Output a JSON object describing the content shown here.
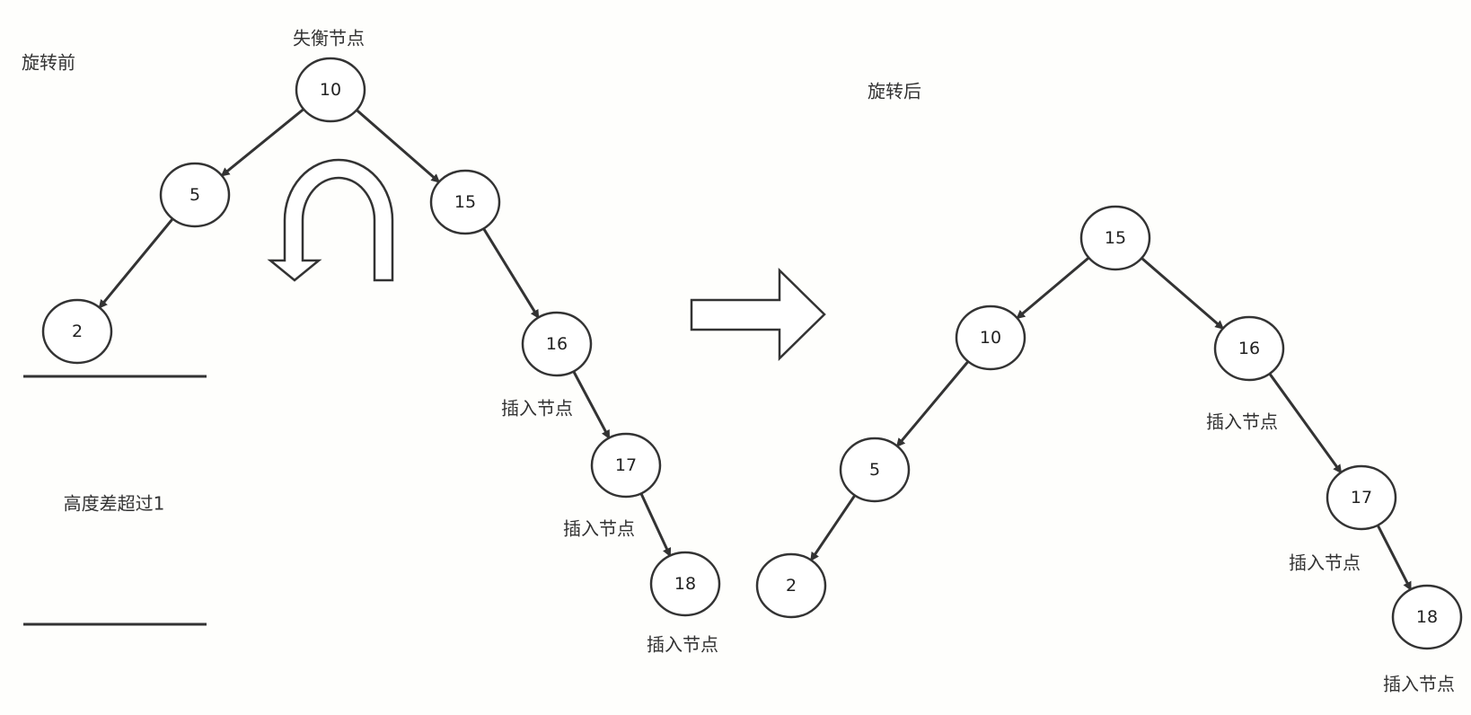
{
  "before": {
    "title": "旋转前",
    "unbalanced_label": "失衡节点",
    "height_label": "高度差超过1",
    "nodes": [
      {
        "id": "n10",
        "value": "10"
      },
      {
        "id": "n5",
        "value": "5"
      },
      {
        "id": "n15",
        "value": "15"
      },
      {
        "id": "n2",
        "value": "2"
      },
      {
        "id": "n16",
        "value": "16"
      },
      {
        "id": "n17",
        "value": "17"
      },
      {
        "id": "n18",
        "value": "18"
      }
    ],
    "edges": [
      [
        "n10",
        "n5"
      ],
      [
        "n10",
        "n15"
      ],
      [
        "n5",
        "n2"
      ],
      [
        "n15",
        "n16"
      ],
      [
        "n16",
        "n17"
      ],
      [
        "n17",
        "n18"
      ]
    ],
    "insert_labels": [
      "插入节点",
      "插入节点",
      "插入节点"
    ]
  },
  "after": {
    "title": "旋转后",
    "nodes": [
      {
        "id": "m15",
        "value": "15"
      },
      {
        "id": "m10",
        "value": "10"
      },
      {
        "id": "m16",
        "value": "16"
      },
      {
        "id": "m5",
        "value": "5"
      },
      {
        "id": "m17",
        "value": "17"
      },
      {
        "id": "m2",
        "value": "2"
      },
      {
        "id": "m18",
        "value": "18"
      }
    ],
    "edges": [
      [
        "m15",
        "m10"
      ],
      [
        "m15",
        "m16"
      ],
      [
        "m10",
        "m5"
      ],
      [
        "m5",
        "m2"
      ],
      [
        "m16",
        "m17"
      ],
      [
        "m17",
        "m18"
      ]
    ],
    "insert_labels": [
      "插入节点",
      "插入节点",
      "插入节点"
    ]
  },
  "colors": {
    "stroke": "#333333",
    "background": "#fefefc",
    "node_fill": "#ffffff"
  },
  "icons": {
    "rotation": "u-turn-arrow-icon",
    "transition": "right-arrow-icon"
  }
}
